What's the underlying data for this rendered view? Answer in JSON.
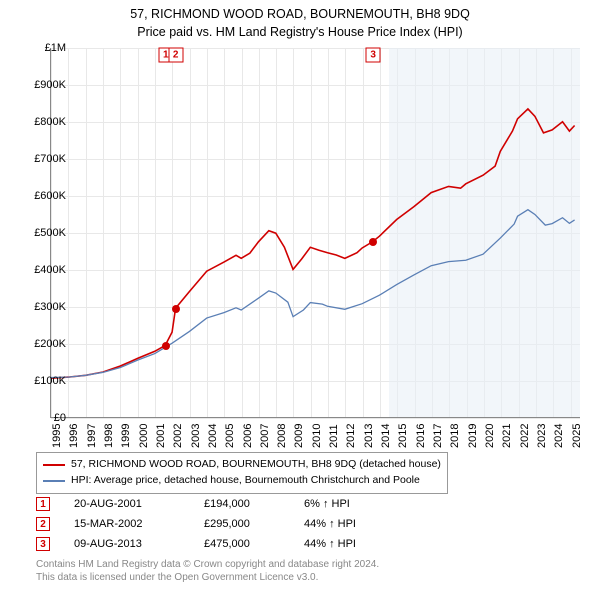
{
  "title": {
    "line1": "57, RICHMOND WOOD ROAD, BOURNEMOUTH, BH8 9DQ",
    "line2": "Price paid vs. HM Land Registry's House Price Index (HPI)"
  },
  "chart": {
    "type": "line",
    "background_color": "#ffffff",
    "grid_color": "#e8e8e8",
    "axis_color": "#888888",
    "forecast_band_color": "#e8eef5",
    "forecast_start_year": 2014.5,
    "xlim": [
      1995,
      2025.6
    ],
    "ylim": [
      0,
      1000000
    ],
    "yticks": [
      0,
      100000,
      200000,
      300000,
      400000,
      500000,
      600000,
      700000,
      800000,
      900000,
      1000000
    ],
    "ytick_labels": [
      "£0",
      "£100K",
      "£200K",
      "£300K",
      "£400K",
      "£500K",
      "£600K",
      "£700K",
      "£800K",
      "£900K",
      "£1M"
    ],
    "ytick_fontsize": 11,
    "xticks": [
      1995,
      1996,
      1997,
      1998,
      1999,
      2000,
      2001,
      2002,
      2003,
      2004,
      2005,
      2006,
      2007,
      2008,
      2009,
      2010,
      2011,
      2012,
      2013,
      2014,
      2015,
      2016,
      2017,
      2018,
      2019,
      2020,
      2021,
      2022,
      2023,
      2024,
      2025
    ],
    "xtick_fontsize": 11,
    "series": [
      {
        "name": "property",
        "label": "57, RICHMOND WOOD ROAD, BOURNEMOUTH, BH8 9DQ (detached house)",
        "color": "#d00000",
        "line_width": 1.6,
        "data": [
          [
            1995,
            105000
          ],
          [
            1996,
            108000
          ],
          [
            1997,
            113000
          ],
          [
            1998,
            122000
          ],
          [
            1999,
            138000
          ],
          [
            2000,
            159000
          ],
          [
            2001,
            178000
          ],
          [
            2001.6,
            194000
          ],
          [
            2002,
            230000
          ],
          [
            2002.2,
            295000
          ],
          [
            2003,
            340000
          ],
          [
            2004,
            395000
          ],
          [
            2005,
            420000
          ],
          [
            2005.7,
            438000
          ],
          [
            2006,
            430000
          ],
          [
            2006.5,
            444000
          ],
          [
            2007,
            475000
          ],
          [
            2007.6,
            505000
          ],
          [
            2008,
            498000
          ],
          [
            2008.5,
            460000
          ],
          [
            2009,
            400000
          ],
          [
            2009.5,
            428000
          ],
          [
            2010,
            460000
          ],
          [
            2010.5,
            452000
          ],
          [
            2011,
            445000
          ],
          [
            2011.5,
            439000
          ],
          [
            2012,
            430000
          ],
          [
            2012.7,
            445000
          ],
          [
            2013,
            458000
          ],
          [
            2013.6,
            475000
          ],
          [
            2014,
            490000
          ],
          [
            2015,
            535000
          ],
          [
            2016,
            570000
          ],
          [
            2017,
            608000
          ],
          [
            2018,
            625000
          ],
          [
            2018.7,
            620000
          ],
          [
            2019,
            632000
          ],
          [
            2020,
            655000
          ],
          [
            2020.7,
            680000
          ],
          [
            2021,
            720000
          ],
          [
            2021.7,
            775000
          ],
          [
            2022,
            808000
          ],
          [
            2022.6,
            835000
          ],
          [
            2023,
            815000
          ],
          [
            2023.5,
            770000
          ],
          [
            2024,
            778000
          ],
          [
            2024.6,
            800000
          ],
          [
            2025,
            775000
          ],
          [
            2025.3,
            790000
          ]
        ]
      },
      {
        "name": "hpi",
        "label": "HPI: Average price, detached house, Bournemouth Christchurch and Poole",
        "color": "#5a7fb5",
        "line_width": 1.3,
        "data": [
          [
            1995,
            107000
          ],
          [
            1996,
            108000
          ],
          [
            1997,
            113000
          ],
          [
            1998,
            121000
          ],
          [
            1999,
            134000
          ],
          [
            2000,
            154000
          ],
          [
            2001,
            172000
          ],
          [
            2002,
            200000
          ],
          [
            2003,
            232000
          ],
          [
            2004,
            268000
          ],
          [
            2005,
            283000
          ],
          [
            2005.7,
            296000
          ],
          [
            2006,
            290000
          ],
          [
            2007,
            322000
          ],
          [
            2007.6,
            342000
          ],
          [
            2008,
            336000
          ],
          [
            2008.7,
            311000
          ],
          [
            2009,
            272000
          ],
          [
            2009.6,
            290000
          ],
          [
            2010,
            310000
          ],
          [
            2010.7,
            306000
          ],
          [
            2011,
            300000
          ],
          [
            2012,
            292000
          ],
          [
            2013,
            307000
          ],
          [
            2014,
            330000
          ],
          [
            2015,
            359000
          ],
          [
            2016,
            385000
          ],
          [
            2017,
            410000
          ],
          [
            2018,
            421000
          ],
          [
            2019,
            425000
          ],
          [
            2020,
            441000
          ],
          [
            2021,
            485000
          ],
          [
            2021.8,
            523000
          ],
          [
            2022,
            544000
          ],
          [
            2022.6,
            562000
          ],
          [
            2023,
            549000
          ],
          [
            2023.6,
            520000
          ],
          [
            2024,
            524000
          ],
          [
            2024.6,
            540000
          ],
          [
            2025,
            525000
          ],
          [
            2025.3,
            534000
          ]
        ]
      }
    ],
    "sale_markers": [
      {
        "n": "1",
        "year": 2001.63,
        "label_y": 980000,
        "dot_price": 194000
      },
      {
        "n": "2",
        "year": 2002.2,
        "label_y": 980000,
        "dot_price": 295000
      },
      {
        "n": "3",
        "year": 2013.6,
        "label_y": 980000,
        "dot_price": 475000
      }
    ]
  },
  "legend": {
    "items": [
      {
        "color": "#d00000",
        "label": "57, RICHMOND WOOD ROAD, BOURNEMOUTH, BH8 9DQ (detached house)"
      },
      {
        "color": "#5a7fb5",
        "label": "HPI: Average price, detached house, Bournemouth Christchurch and Poole"
      }
    ]
  },
  "sales": [
    {
      "n": "1",
      "date": "20-AUG-2001",
      "price": "£194,000",
      "pct": "6% ↑ HPI"
    },
    {
      "n": "2",
      "date": "15-MAR-2002",
      "price": "£295,000",
      "pct": "44% ↑ HPI"
    },
    {
      "n": "3",
      "date": "09-AUG-2013",
      "price": "£475,000",
      "pct": "44% ↑ HPI"
    }
  ],
  "footer": {
    "line1": "Contains HM Land Registry data © Crown copyright and database right 2024.",
    "line2": "This data is licensed under the Open Government Licence v3.0."
  }
}
